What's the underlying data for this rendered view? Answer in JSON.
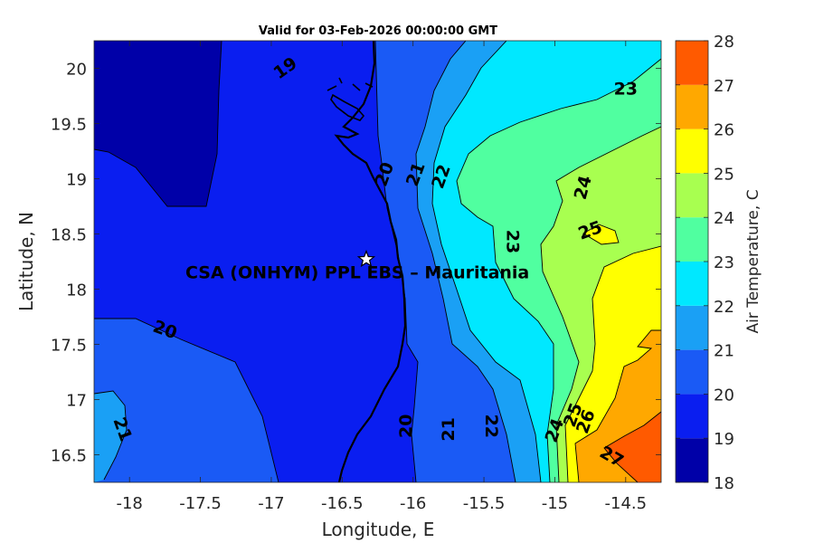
{
  "chart_data": {
    "type": "contour-map",
    "title": "Valid for 03-Feb-2026 00:00:00 GMT",
    "xlabel": "Longitude, E",
    "ylabel": "Latitude, N",
    "xlim": [
      -18.25,
      -14.25
    ],
    "ylim": [
      16.25,
      20.25
    ],
    "x_ticks": [
      -18,
      -17.5,
      -17,
      -16.5,
      -16,
      -15.5,
      -15,
      -14.5
    ],
    "x_tick_labels": [
      "-18",
      "-17.5",
      "-17",
      "-16.5",
      "-16",
      "-15.5",
      "-15",
      "-14.5"
    ],
    "y_ticks": [
      16.5,
      17,
      17.5,
      18,
      18.5,
      19,
      19.5,
      20
    ],
    "y_tick_labels": [
      "16.5",
      "17",
      "17.5",
      "18",
      "18.5",
      "19",
      "19.5",
      "20"
    ],
    "colorbar": {
      "label": "Air Temperature, C",
      "levels": [
        18,
        19,
        20,
        21,
        22,
        23,
        24,
        25,
        26,
        27,
        28
      ],
      "tick_labels": [
        "18",
        "19",
        "20",
        "21",
        "22",
        "23",
        "24",
        "25",
        "26",
        "27",
        "28"
      ],
      "colors": [
        "#0000a8",
        "#0a1ef0",
        "#1a5af5",
        "#1aa0f5",
        "#00e8ff",
        "#50ffa0",
        "#a8ff50",
        "#ffff00",
        "#ffa800",
        "#ff5a00",
        "#ff0000"
      ]
    },
    "contour_labels": [
      {
        "text": "19",
        "lon": -16.9,
        "lat": 20.0,
        "rotate": -35
      },
      {
        "text": "20",
        "lon": -16.2,
        "lat": 19.04,
        "rotate": -70
      },
      {
        "text": "21",
        "lon": -15.98,
        "lat": 19.04,
        "rotate": -70
      },
      {
        "text": "22",
        "lon": -15.8,
        "lat": 19.02,
        "rotate": -70
      },
      {
        "text": "23",
        "lon": -14.5,
        "lat": 19.81,
        "rotate": 0
      },
      {
        "text": "24",
        "lon": -14.8,
        "lat": 18.92,
        "rotate": -75
      },
      {
        "text": "25",
        "lon": -14.75,
        "lat": 18.53,
        "rotate": -20
      },
      {
        "text": "23",
        "lon": -15.3,
        "lat": 18.43,
        "rotate": 90
      },
      {
        "text": "20",
        "lon": -17.75,
        "lat": 17.63,
        "rotate": 20
      },
      {
        "text": "21",
        "lon": -18.05,
        "lat": 16.73,
        "rotate": 70
      },
      {
        "text": "20",
        "lon": -16.05,
        "lat": 16.76,
        "rotate": -90
      },
      {
        "text": "21",
        "lon": -15.75,
        "lat": 16.73,
        "rotate": -90
      },
      {
        "text": "22",
        "lon": -15.45,
        "lat": 16.76,
        "rotate": 90
      },
      {
        "text": "24",
        "lon": -15.0,
        "lat": 16.72,
        "rotate": -70
      },
      {
        "text": "25",
        "lon": -14.87,
        "lat": 16.86,
        "rotate": -70
      },
      {
        "text": "26",
        "lon": -14.78,
        "lat": 16.8,
        "rotate": -70
      },
      {
        "text": "27",
        "lon": -14.6,
        "lat": 16.48,
        "rotate": 30
      }
    ],
    "site": {
      "label": "CSA (ONHYM) PPL EBS  – Mauritania",
      "lon": -16.33,
      "lat": 18.27
    },
    "grid": false
  }
}
